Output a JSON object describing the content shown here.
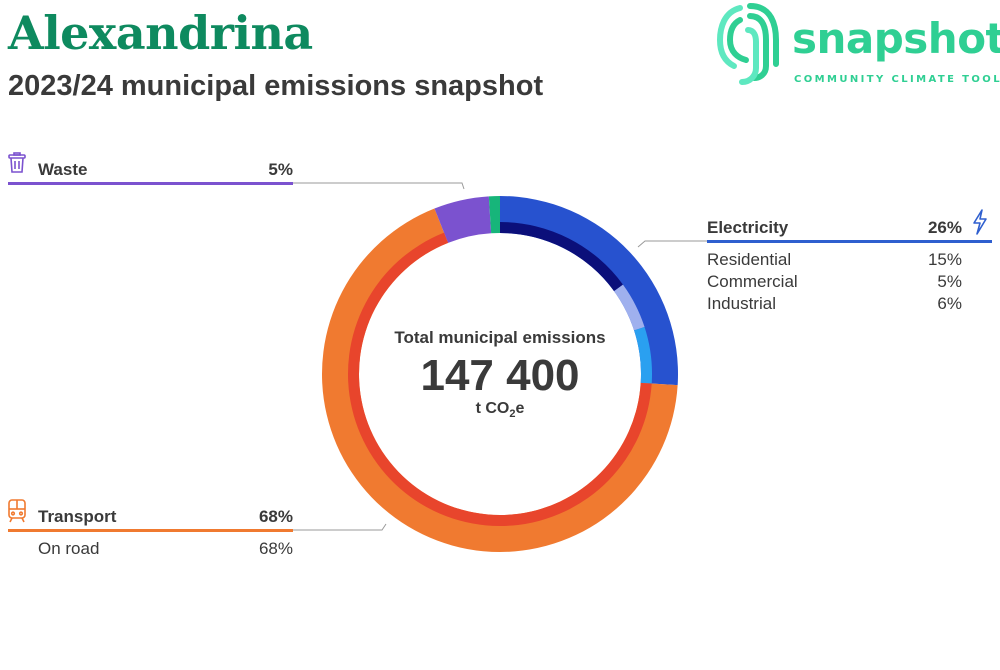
{
  "header": {
    "title": "Alexandrina",
    "subtitle": "2023/24 municipal emissions snapshot"
  },
  "logo": {
    "wordmark": "snapshot",
    "tagline": "COMMUNITY CLIMATE TOOL",
    "color": "#2fcf93",
    "icon": "fingerprint-swirl-icon"
  },
  "center": {
    "label": "Total municipal emissions",
    "value": "147 400",
    "unit_prefix": "t CO",
    "unit_sub": "2",
    "unit_suffix": "e"
  },
  "categories": {
    "waste": {
      "label": "Waste",
      "pct": "5%",
      "color": "#7b52cf",
      "icon": "trash-bin-icon"
    },
    "electricity": {
      "label": "Electricity",
      "pct": "26%",
      "color": "#2f5fcf",
      "icon": "lightning-bolt-icon",
      "subs": [
        {
          "label": "Residential",
          "pct": "15%"
        },
        {
          "label": "Commercial",
          "pct": "5%"
        },
        {
          "label": "Industrial",
          "pct": "6%"
        }
      ]
    },
    "transport": {
      "label": "Transport",
      "pct": "68%",
      "color": "#f07a30",
      "icon": "train-icon",
      "subs": [
        {
          "label": "On road",
          "pct": "68%"
        }
      ]
    }
  },
  "chart_data": {
    "type": "pie",
    "title": "2023/24 municipal emissions snapshot",
    "total": 147400,
    "unit": "t CO2e",
    "series": [
      {
        "name": "Electricity",
        "value": 26,
        "color": "#2752cf",
        "subs": [
          {
            "name": "Residential",
            "value": 15,
            "color": "#0b0f7a"
          },
          {
            "name": "Commercial",
            "value": 5,
            "color": "#9fb0ee"
          },
          {
            "name": "Industrial",
            "value": 6,
            "color": "#2aa0f0"
          }
        ]
      },
      {
        "name": "Transport",
        "value": 68,
        "color": "#f07a30",
        "subs": [
          {
            "name": "On road",
            "value": 68,
            "color": "#e8452c"
          }
        ]
      },
      {
        "name": "Waste",
        "value": 5,
        "color": "#7b52cf",
        "subs": []
      },
      {
        "name": "",
        "value": 1,
        "color": "#17b57a",
        "subs": []
      }
    ]
  }
}
